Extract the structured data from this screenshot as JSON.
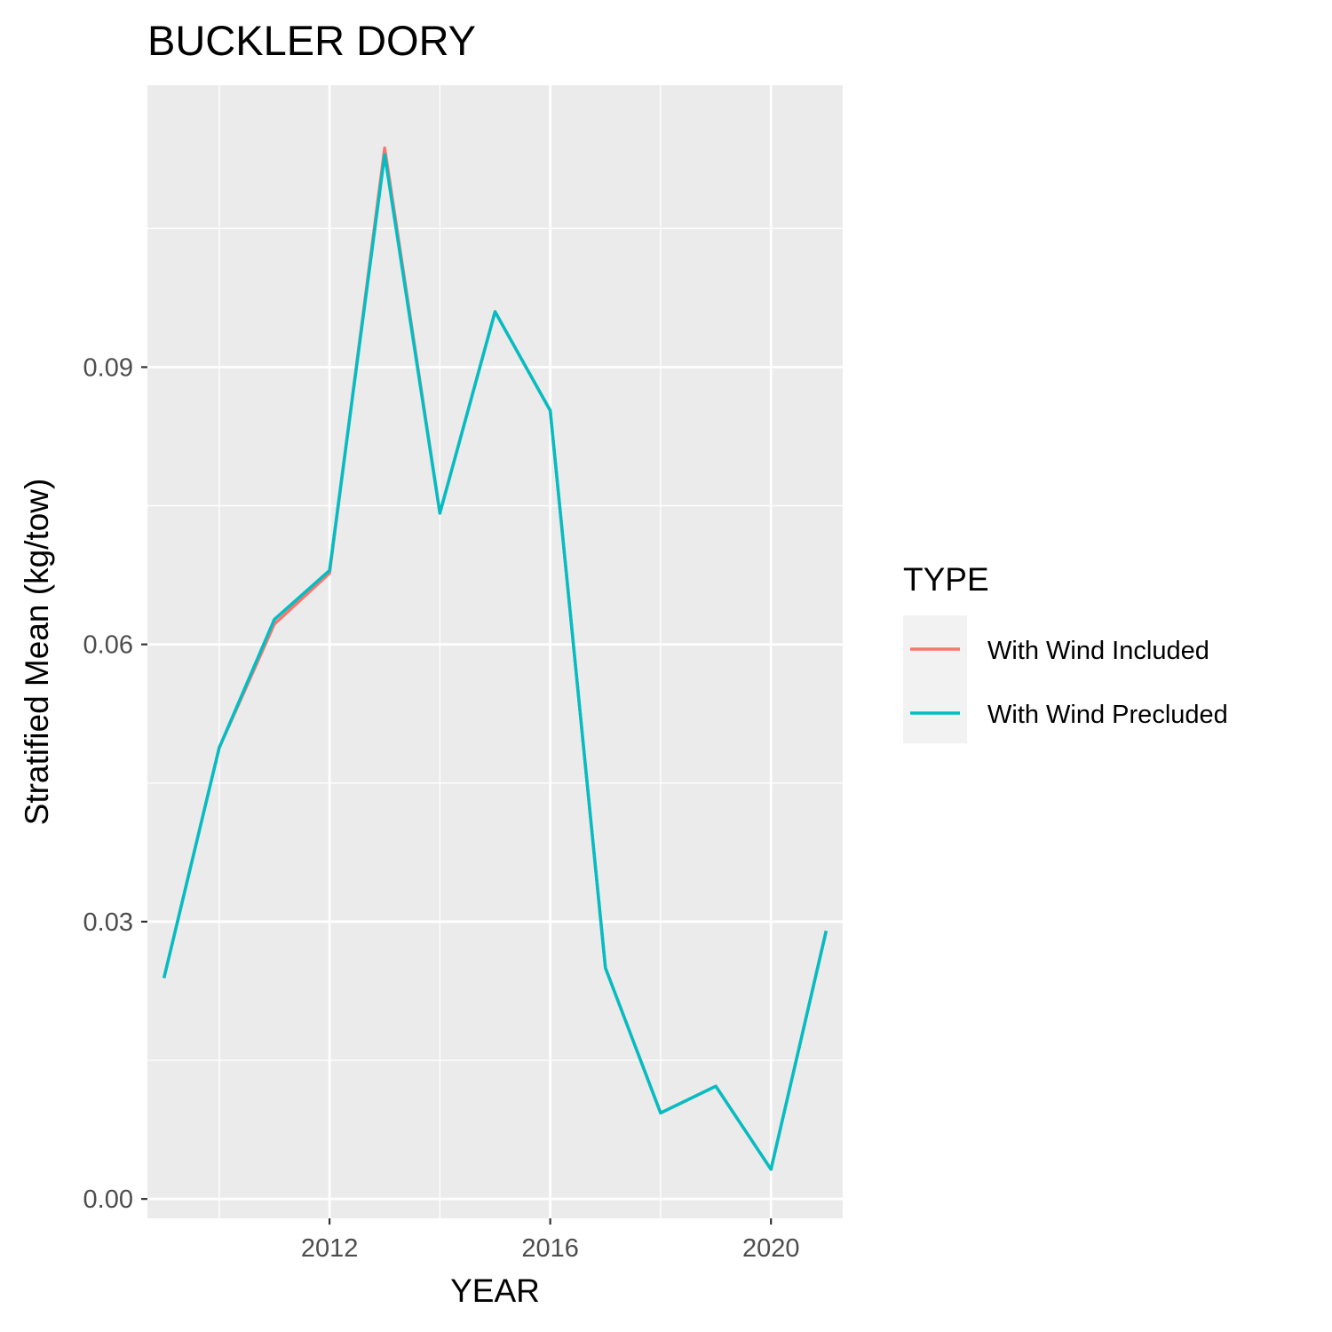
{
  "chart_data": {
    "type": "line",
    "title": "BUCKLER DORY",
    "xlabel": "YEAR",
    "ylabel": "Stratified Mean (kg/tow)",
    "xlim": [
      2008.7,
      2021.3
    ],
    "ylim": [
      -0.0021,
      0.1205
    ],
    "x_ticks": [
      2012,
      2016,
      2020
    ],
    "x_tick_labels": [
      "2012",
      "2016",
      "2020"
    ],
    "y_ticks": [
      0.0,
      0.03,
      0.06,
      0.09
    ],
    "y_tick_labels": [
      "0.00",
      "0.03",
      "0.06",
      "0.09"
    ],
    "grid": true,
    "legend": {
      "title": "TYPE",
      "position": "right"
    },
    "x": [
      2009,
      2010,
      2011,
      2012,
      2013,
      2014,
      2015,
      2016,
      2017,
      2018,
      2019,
      2020,
      2021
    ],
    "series": [
      {
        "name": "With Wind Included",
        "color": "#F8766D",
        "values": [
          0.0239,
          0.0488,
          0.0622,
          0.0677,
          0.1137,
          0.0742,
          0.096,
          0.0853,
          0.025,
          0.0093,
          0.0122,
          0.0032,
          0.029
        ]
      },
      {
        "name": "With Wind Precluded",
        "color": "#00BFC4",
        "values": [
          0.0239,
          0.0488,
          0.0627,
          0.068,
          0.113,
          0.0742,
          0.096,
          0.0853,
          0.025,
          0.0093,
          0.0122,
          0.0032,
          0.029
        ]
      }
    ]
  }
}
